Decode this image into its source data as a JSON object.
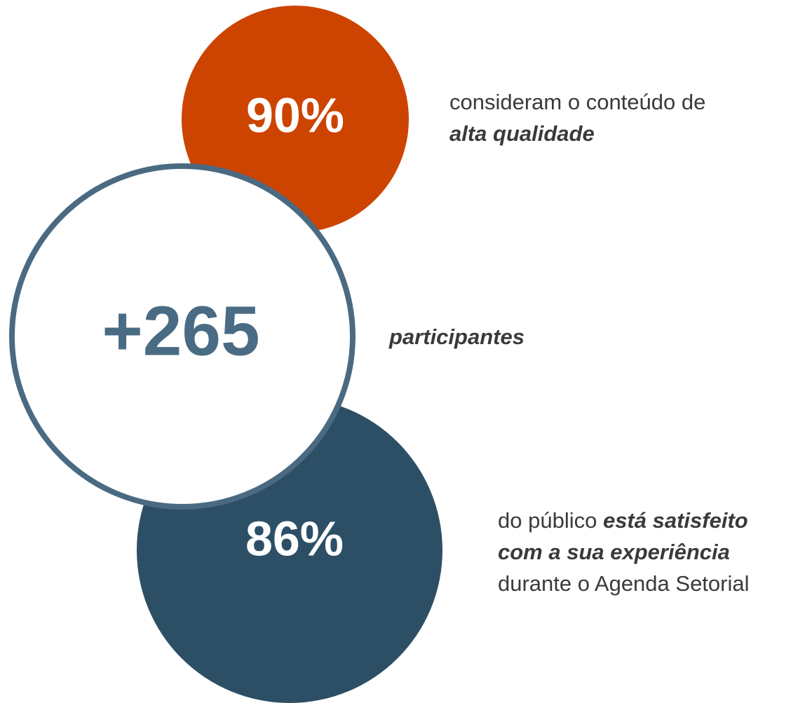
{
  "items": [
    {
      "value": "90%",
      "description": [
        [
          {
            "text": "consideram o conteúdo de"
          }
        ],
        [
          {
            "text": "alta qualidade",
            "em": true
          }
        ]
      ]
    },
    {
      "value": "+265",
      "description": [
        [
          {
            "text": "participantes",
            "em": true
          }
        ]
      ]
    },
    {
      "value": "86%",
      "description": [
        [
          {
            "text": "do público "
          },
          {
            "text": "está satisfeito",
            "em": true
          }
        ],
        [
          {
            "text": "com a sua experiência",
            "em": true
          }
        ],
        [
          {
            "text": "durante o Agenda Setorial"
          }
        ]
      ]
    }
  ]
}
